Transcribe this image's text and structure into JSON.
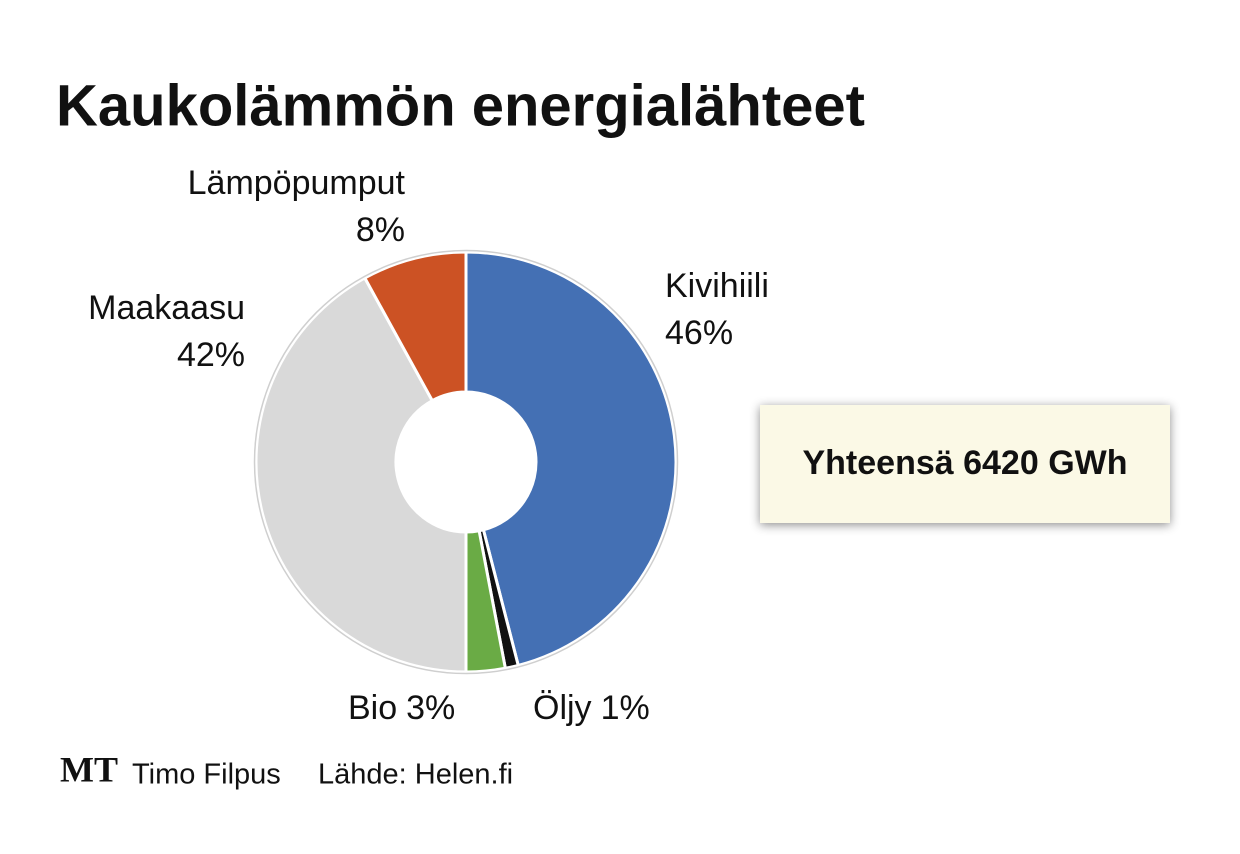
{
  "chart_data": {
    "type": "donut",
    "title": "Kaukolämmön energialähteet",
    "categories": [
      "Kivihiili",
      "Öljy",
      "Bio",
      "Maakaasu",
      "Lämpöpumput"
    ],
    "values": [
      46,
      1,
      3,
      42,
      8
    ],
    "value_labels": [
      "46%",
      "1%",
      "3%",
      "42%",
      "8%"
    ],
    "colors": [
      "#4470b4",
      "#111111",
      "#6aab45",
      "#d9d9d9",
      "#cc5224"
    ],
    "annotation": "Yhteensä 6420 GWh",
    "credits": {
      "logo": "MT",
      "author": "Timo Filpus",
      "source": "Lähde: Helen.fi"
    }
  }
}
